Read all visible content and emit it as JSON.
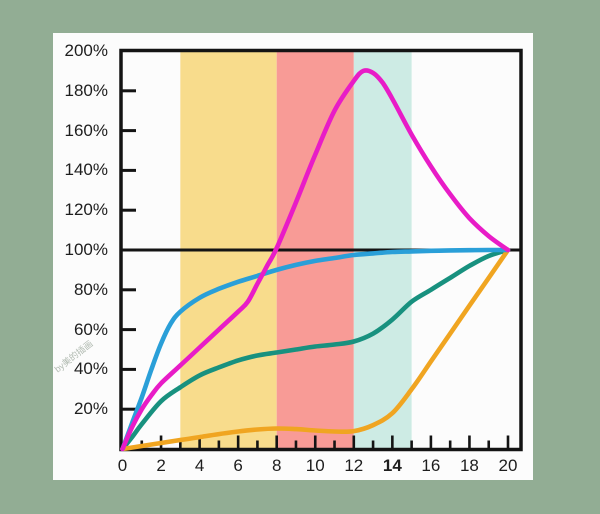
{
  "watermark": "by美的插画",
  "colors": {
    "page_background": "#92ad94",
    "panel_background": "#fcfcfc",
    "axis": "#141414",
    "label_text": "#1e1e1e"
  },
  "chart_data": {
    "type": "line",
    "title": "",
    "xlabel": "",
    "ylabel": "",
    "grid": false,
    "legend": null,
    "x_axis": {
      "range": [
        0,
        20
      ],
      "major_tick_labels": [
        "0",
        "2",
        "4",
        "6",
        "8",
        "10",
        "12",
        "14",
        "16",
        "18",
        "20"
      ],
      "major_tick_values": [
        0,
        2,
        4,
        6,
        8,
        10,
        12,
        14,
        16,
        18,
        20
      ],
      "minor_tick_step": 1,
      "bold_label": "14"
    },
    "y_axis": {
      "range": [
        0,
        200
      ],
      "unit": "%",
      "tick_labels": [
        "200%",
        "180%",
        "160%",
        "140%",
        "120%",
        "100%",
        "80%",
        "60%",
        "40%",
        "20%"
      ],
      "tick_values": [
        200,
        180,
        160,
        140,
        120,
        100,
        80,
        60,
        40,
        20
      ]
    },
    "reference_line": {
      "y": 100,
      "color": "#141414"
    },
    "bands": [
      {
        "name": "yellow-band",
        "from": 3,
        "to": 8,
        "color": "#f8dc8c"
      },
      {
        "name": "red-band",
        "from": 8,
        "to": 12,
        "color": "#f89b96"
      },
      {
        "name": "cyan-band",
        "from": 12,
        "to": 15,
        "color": "#cdebe4"
      }
    ],
    "series": [
      {
        "name": "teal-curve",
        "color": "#18917f",
        "points": [
          [
            0,
            0
          ],
          [
            0.5,
            6
          ],
          [
            1,
            12.5
          ],
          [
            2,
            24
          ],
          [
            3,
            31
          ],
          [
            4,
            37
          ],
          [
            5,
            41
          ],
          [
            6,
            44.5
          ],
          [
            7,
            47
          ],
          [
            8,
            48.5
          ],
          [
            9,
            50
          ],
          [
            10,
            51.5
          ],
          [
            11,
            52.5
          ],
          [
            12,
            54
          ],
          [
            13,
            58
          ],
          [
            14,
            65
          ],
          [
            15,
            74
          ],
          [
            16,
            80
          ],
          [
            17,
            86
          ],
          [
            18,
            92
          ],
          [
            19,
            97
          ],
          [
            20,
            100
          ]
        ]
      },
      {
        "name": "orange-curve",
        "color": "#f0a521",
        "points": [
          [
            0,
            0
          ],
          [
            1,
            1.5
          ],
          [
            2,
            3
          ],
          [
            3,
            4.5
          ],
          [
            4,
            6
          ],
          [
            5,
            7.5
          ],
          [
            6,
            8.8
          ],
          [
            7,
            9.8
          ],
          [
            8,
            10.3
          ],
          [
            9,
            10
          ],
          [
            10,
            9.3
          ],
          [
            11,
            8.8
          ],
          [
            12,
            9
          ],
          [
            13,
            12
          ],
          [
            14,
            18
          ],
          [
            15,
            30
          ],
          [
            16,
            44
          ],
          [
            17,
            58
          ],
          [
            18,
            72
          ],
          [
            19,
            86
          ],
          [
            20,
            100
          ]
        ]
      },
      {
        "name": "blue-curve",
        "color": "#2a9fd8",
        "points": [
          [
            0,
            0
          ],
          [
            0.5,
            13
          ],
          [
            1,
            26
          ],
          [
            1.5,
            40
          ],
          [
            2,
            53
          ],
          [
            2.5,
            63
          ],
          [
            3,
            69
          ],
          [
            4,
            76
          ],
          [
            5,
            80.5
          ],
          [
            6,
            84
          ],
          [
            7,
            87
          ],
          [
            8,
            90
          ],
          [
            9,
            92.5
          ],
          [
            10,
            94.5
          ],
          [
            11,
            96
          ],
          [
            12,
            97.5
          ],
          [
            13,
            98.3
          ],
          [
            14,
            99
          ],
          [
            15,
            99.3
          ],
          [
            16,
            99.6
          ],
          [
            17,
            99.8
          ],
          [
            18,
            99.9
          ],
          [
            19,
            100
          ],
          [
            20,
            100
          ]
        ]
      },
      {
        "name": "magenta-curve",
        "color": "#e81cc7",
        "points": [
          [
            0,
            0
          ],
          [
            0.5,
            11
          ],
          [
            1,
            20
          ],
          [
            1.5,
            27
          ],
          [
            2,
            33
          ],
          [
            3,
            42
          ],
          [
            4,
            51
          ],
          [
            5,
            60
          ],
          [
            6,
            69
          ],
          [
            6.5,
            74
          ],
          [
            7,
            83
          ],
          [
            7.5,
            92
          ],
          [
            8,
            101
          ],
          [
            9,
            124
          ],
          [
            10,
            148
          ],
          [
            11,
            170
          ],
          [
            12,
            185
          ],
          [
            12.5,
            190
          ],
          [
            13,
            189
          ],
          [
            13.5,
            184
          ],
          [
            14,
            176
          ],
          [
            15,
            158
          ],
          [
            16,
            142
          ],
          [
            17,
            128
          ],
          [
            18,
            116
          ],
          [
            19,
            107
          ],
          [
            20,
            100
          ]
        ]
      }
    ]
  }
}
